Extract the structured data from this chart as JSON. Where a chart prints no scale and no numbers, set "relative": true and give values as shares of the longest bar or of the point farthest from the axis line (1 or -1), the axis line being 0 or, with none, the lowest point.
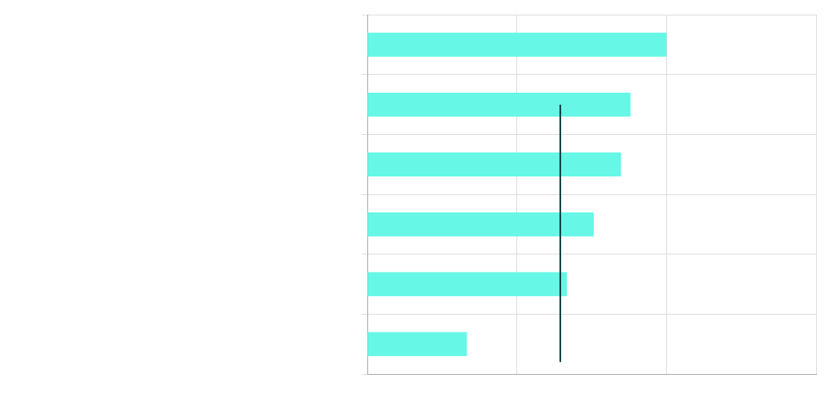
{
  "chart_data": {
    "type": "bar",
    "orientation": "horizontal",
    "relative": true,
    "categories": [
      null,
      null,
      null,
      null,
      null,
      null
    ],
    "values": [
      1,
      0.88,
      0.848,
      0.757,
      0.667,
      0.333
    ],
    "color": "#66f7e6",
    "grid": true,
    "legend": false,
    "ref_lines": [
      {
        "axis": "x",
        "value": 0.645,
        "color": "#0b3d3d"
      }
    ]
  }
}
